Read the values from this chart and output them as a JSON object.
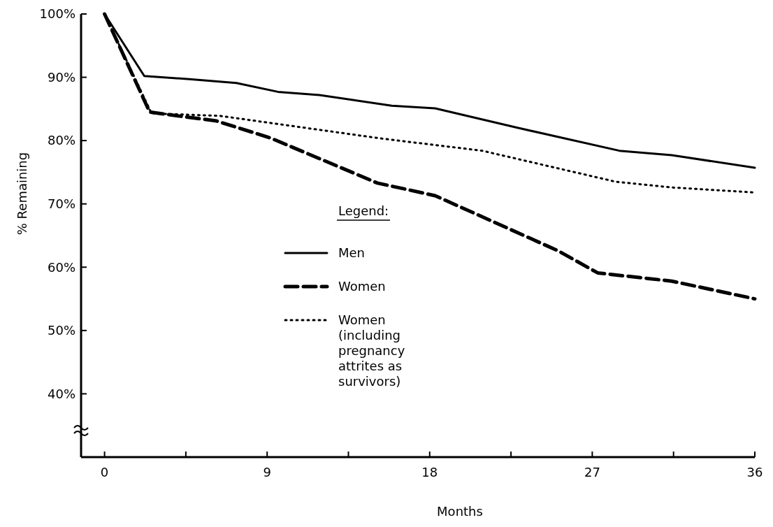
{
  "chart_data": {
    "type": "line",
    "xlabel": "Months",
    "ylabel": "% Remaining",
    "legend_title": "Legend:",
    "legend": "center",
    "xlim": [
      -1.3,
      36
    ],
    "xticks": [
      0,
      {
        "value": 4.5,
        "label": null
      },
      9,
      {
        "value": 13.5,
        "label": null
      },
      18,
      {
        "value": 22.5,
        "label": null
      },
      27,
      {
        "value": 31.5,
        "label": null
      },
      36
    ],
    "ylim": [
      30,
      100
    ],
    "yticks": [
      {
        "value": 40,
        "label": "40%"
      },
      {
        "value": 50,
        "label": "50%"
      },
      {
        "value": 60,
        "label": "60%"
      },
      {
        "value": 70,
        "label": "70%"
      },
      {
        "value": 80,
        "label": "80%"
      },
      {
        "value": 90,
        "label": "90%"
      },
      {
        "value": 100,
        "label": "100%"
      }
    ],
    "marker": "none",
    "series": [
      {
        "name": "Men",
        "color": "#000000",
        "line_style": "solid",
        "x": [
          0,
          2.2,
          4.7,
          7.3,
          9.6,
          11.9,
          15.9,
          18.3,
          22.9,
          28.5,
          31.4,
          36
        ],
        "values": [
          100,
          90.2,
          89.7,
          89.1,
          87.7,
          87.2,
          85.5,
          85.1,
          82.0,
          78.4,
          77.7,
          75.7
        ]
      },
      {
        "name": "Women",
        "color": "#000000",
        "line_style": "dashed",
        "x": [
          0,
          2.5,
          6.2,
          9.2,
          15.1,
          18.3,
          25.1,
          27.3,
          31.4,
          36
        ],
        "values": [
          100,
          84.5,
          83.1,
          80.4,
          73.3,
          71.3,
          62.6,
          59.1,
          57.8,
          55.0
        ]
      },
      {
        "name": "Women (including pregnancy attrites as survivors)",
        "color": "#000000",
        "line_style": "dotted",
        "x": [
          0,
          2.6,
          6.4,
          15.4,
          20.9,
          28.3,
          31.4,
          36
        ],
        "values": [
          100,
          84.3,
          83.9,
          80.3,
          78.4,
          73.5,
          72.6,
          71.8
        ]
      }
    ]
  }
}
